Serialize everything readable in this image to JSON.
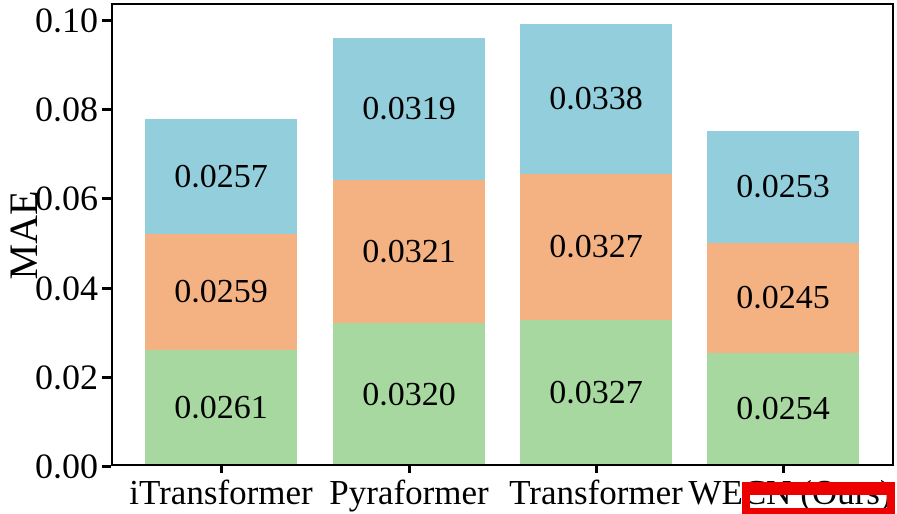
{
  "chart_data": {
    "type": "bar",
    "stacked": true,
    "title": "",
    "ylabel": "MAE",
    "xlabel": "",
    "categories": [
      "iTransformer",
      "Pyraformer",
      "Transformer",
      "WECN (Ours)"
    ],
    "series": [
      {
        "name": "green-bottom-segment",
        "color": "#a7d8a0",
        "values": [
          "0.0261",
          "0.0320",
          "0.0327",
          "0.0254"
        ]
      },
      {
        "name": "orange-middle-segment",
        "color": "#f4b283",
        "values": [
          "0.0259",
          "0.0321",
          "0.0327",
          "0.0245"
        ]
      },
      {
        "name": "blue-top-segment",
        "color": "#92cedc",
        "values": [
          "0.0257",
          "0.0319",
          "0.0338",
          "0.0253"
        ]
      }
    ],
    "yticks": [
      "0.00",
      "0.02",
      "0.04",
      "0.06",
      "0.08",
      "0.10"
    ],
    "ylim": [
      0,
      0.1038
    ],
    "grid": false,
    "legend": "none",
    "value_label_position": "inside-center"
  },
  "annotation": {
    "shape": "rectangle-outline",
    "color": "#ee0000",
    "covers": "top half of 'ECN (Ours)' in the last x-axis label"
  }
}
